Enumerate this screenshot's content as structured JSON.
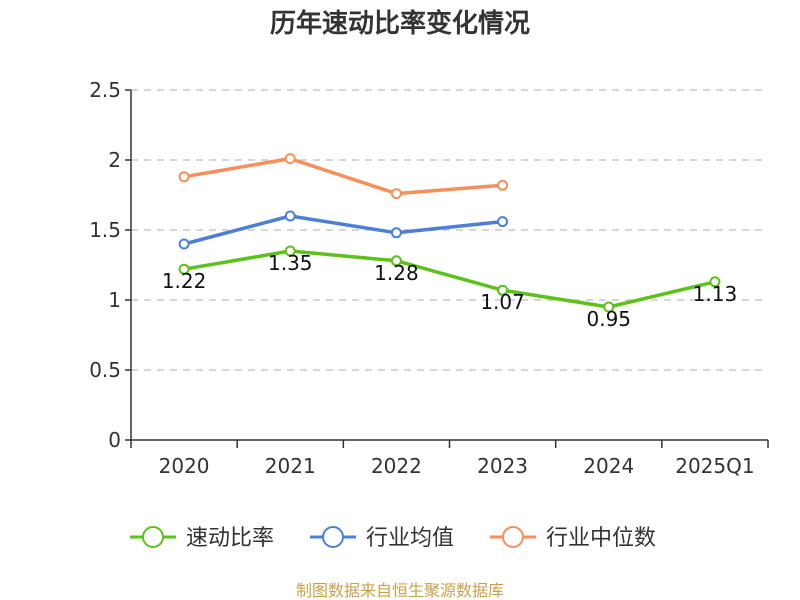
{
  "chart_data": {
    "type": "line",
    "title": "历年速动比率变化情况",
    "categories": [
      "2020",
      "2021",
      "2022",
      "2023",
      "2024",
      "2025Q1"
    ],
    "ylim": [
      0,
      2.5
    ],
    "yticks": [
      0,
      0.5,
      1,
      1.5,
      2,
      2.5
    ],
    "ytick_labels": [
      "0",
      "0.5",
      "1",
      "1.5",
      "2",
      "2.5"
    ],
    "grid": true,
    "legend_position": "bottom",
    "series": [
      {
        "name": "速动比率",
        "color": "#5ac21b",
        "values": [
          1.22,
          1.35,
          1.28,
          1.07,
          0.95,
          1.13
        ],
        "labels": [
          "1.22",
          "1.35",
          "1.28",
          "1.07",
          "0.95",
          "1.13"
        ]
      },
      {
        "name": "行业均值",
        "color": "#4d7fd8",
        "values": [
          1.4,
          1.6,
          1.48,
          1.56,
          null,
          null
        ]
      },
      {
        "name": "行业中位数",
        "color": "#f78f5a",
        "values": [
          1.88,
          2.01,
          1.76,
          1.82,
          null,
          null
        ]
      }
    ]
  },
  "source": "制图数据来自恒生聚源数据库"
}
